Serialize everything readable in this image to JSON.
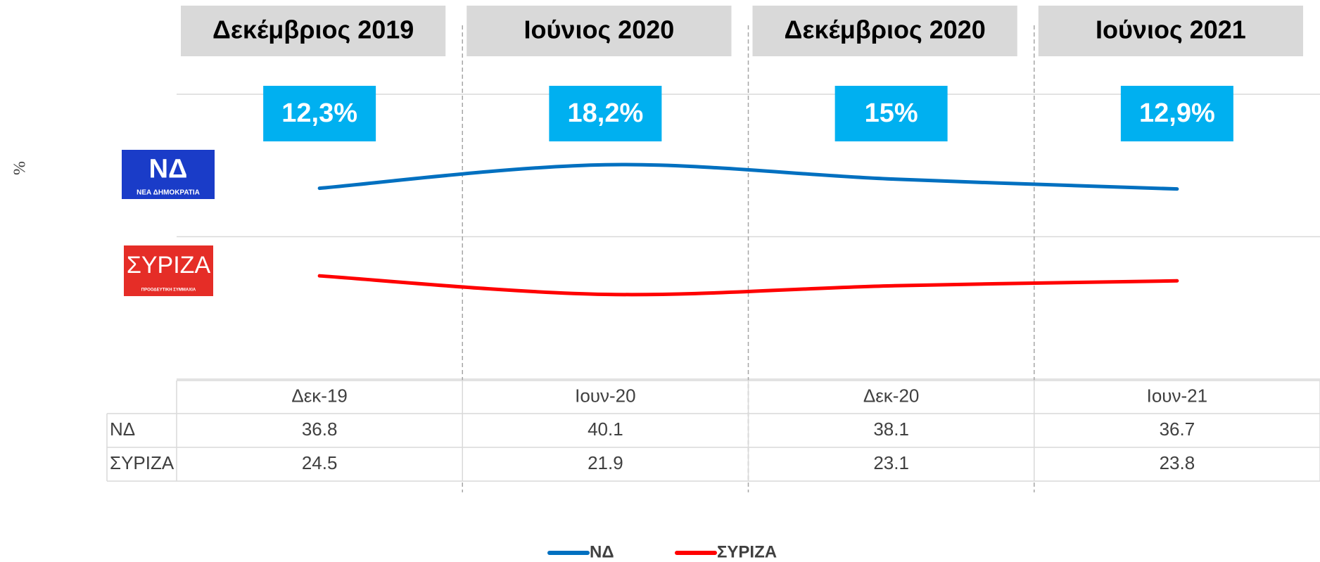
{
  "chart_data": {
    "type": "line",
    "ylabel": "%",
    "periods": [
      "Δεκέμβριος 2019",
      "Ιούνιος 2020",
      "Δεκέμβριος 2020",
      "Ιούνιος 2021"
    ],
    "difference_labels": [
      "12,3%",
      "18,2%",
      "15%",
      "12,9%"
    ],
    "categories": [
      "Δεκ-19",
      "Ιουν-20",
      "Δεκ-20",
      "Ιουν-21"
    ],
    "series": [
      {
        "name": "ΝΔ",
        "color": "#0070c0",
        "values": [
          36.8,
          40.1,
          38.1,
          36.7
        ],
        "logo": "ΝΕΑ ΔΗΜΟΚΡΑΤΙΑ"
      },
      {
        "name": "ΣΥΡΙΖΑ",
        "color": "#ff0000",
        "values": [
          24.5,
          21.9,
          23.1,
          23.8
        ],
        "logo": "ΠΡΟΟΔΕΥΤΙΚΗ ΣΥΜΜΑΧΙΑ"
      }
    ],
    "ylim": [
      10,
      50
    ],
    "yticks": [
      10,
      30,
      50
    ],
    "ytick_labels": false,
    "grid": true,
    "legend": "bottom"
  }
}
